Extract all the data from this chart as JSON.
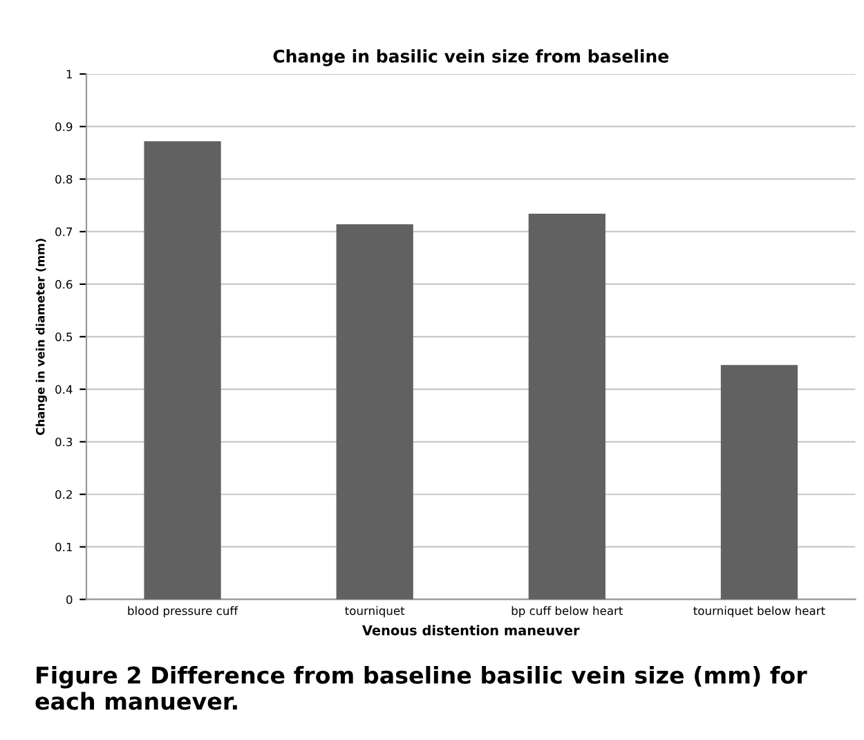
{
  "chart_data": {
    "type": "bar",
    "title": "Change in basilic vein size from baseline",
    "xlabel": "Venous distention maneuver",
    "ylabel": "Change in vein diameter (mm)",
    "categories": [
      "blood pressure cuff",
      "tourniquet",
      "bp cuff below heart",
      "tourniquet below heart"
    ],
    "values": [
      0.872,
      0.714,
      0.734,
      0.446
    ],
    "color": "#616161",
    "ylim": [
      0,
      1
    ],
    "yticks": [
      0,
      0.1,
      0.2,
      0.3,
      0.4,
      0.5,
      0.6,
      0.7,
      0.8,
      0.9,
      1
    ],
    "grid": "y",
    "annotations": [
      "Figure 2 Difference from baseline basilic vein size (mm) for each manuever."
    ]
  }
}
